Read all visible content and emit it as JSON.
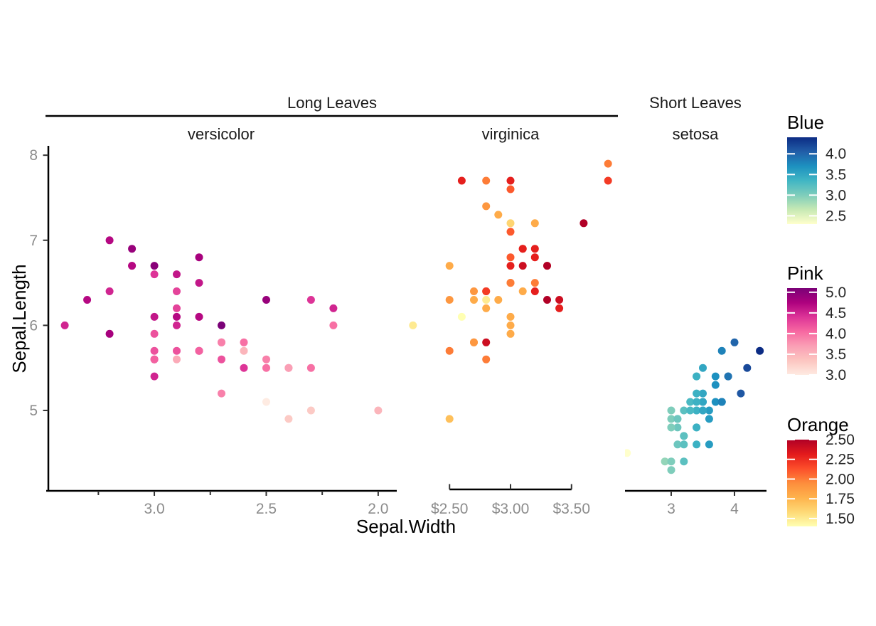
{
  "chart_data": {
    "type": "scatter",
    "xlabel": "Sepal.Width",
    "ylabel": "Sepal.Length",
    "facet_groups": [
      {
        "label": "Long Leaves",
        "underline": true
      },
      {
        "label": "Short Leaves",
        "underline": false
      }
    ],
    "y_axis": {
      "domain": [
        4.055,
        8.11
      ],
      "ticks": [
        {
          "v": 8,
          "label": "8"
        },
        {
          "v": 7,
          "label": "7"
        },
        {
          "v": 6,
          "label": "6"
        },
        {
          "v": 5,
          "label": "5"
        }
      ]
    },
    "panels": [
      {
        "strip": "versicolor",
        "group": "Long Leaves",
        "x_domain": [
          3.483,
          1.917
        ],
        "axis": {
          "style": "full",
          "tick_dir": "down",
          "ticks": [
            {
              "v": 3.0,
              "label": "3.0"
            },
            {
              "v": 2.5,
              "label": "2.5"
            },
            {
              "v": 2.0,
              "label": "2.0"
            }
          ],
          "minor": [
            3.25,
            2.75,
            2.25
          ]
        },
        "color": {
          "ramp": "rdpu",
          "domain": [
            3.0,
            5.1
          ],
          "variable": "Petal.Length"
        },
        "point_fields": [
          "sepal_width_x",
          "sepal_length_y",
          "color_value"
        ],
        "points": [
          [
            3.2,
            7.0,
            4.7
          ],
          [
            3.2,
            6.4,
            4.5
          ],
          [
            3.1,
            6.9,
            4.9
          ],
          [
            2.3,
            5.5,
            4.0
          ],
          [
            2.8,
            6.5,
            4.6
          ],
          [
            2.8,
            5.7,
            4.5
          ],
          [
            3.3,
            6.3,
            4.7
          ],
          [
            2.4,
            4.9,
            3.3
          ],
          [
            2.9,
            6.6,
            4.6
          ],
          [
            2.7,
            5.2,
            3.9
          ],
          [
            2.0,
            5.0,
            3.5
          ],
          [
            3.0,
            5.9,
            4.2
          ],
          [
            2.2,
            6.0,
            4.0
          ],
          [
            2.9,
            6.1,
            4.7
          ],
          [
            2.9,
            5.6,
            3.6
          ],
          [
            3.1,
            6.7,
            4.4
          ],
          [
            3.0,
            5.6,
            4.5
          ],
          [
            2.7,
            5.8,
            4.1
          ],
          [
            2.2,
            6.2,
            4.5
          ],
          [
            2.5,
            5.6,
            3.9
          ],
          [
            3.2,
            5.9,
            4.8
          ],
          [
            2.8,
            6.1,
            4.0
          ],
          [
            2.5,
            6.3,
            4.9
          ],
          [
            2.8,
            6.1,
            4.7
          ],
          [
            2.9,
            6.4,
            4.3
          ],
          [
            3.0,
            6.6,
            4.4
          ],
          [
            2.8,
            6.8,
            4.8
          ],
          [
            3.0,
            6.7,
            5.0
          ],
          [
            2.9,
            6.0,
            4.5
          ],
          [
            2.6,
            5.7,
            3.5
          ],
          [
            2.4,
            5.5,
            3.8
          ],
          [
            2.4,
            5.5,
            3.7
          ],
          [
            2.7,
            5.8,
            3.9
          ],
          [
            2.7,
            6.0,
            5.1
          ],
          [
            3.0,
            5.4,
            4.5
          ],
          [
            3.4,
            6.0,
            4.5
          ],
          [
            3.1,
            6.7,
            4.7
          ],
          [
            2.3,
            6.3,
            4.4
          ],
          [
            3.0,
            5.6,
            4.1
          ],
          [
            2.5,
            5.5,
            4.0
          ],
          [
            2.6,
            5.5,
            4.4
          ],
          [
            3.0,
            6.1,
            4.6
          ],
          [
            2.6,
            5.8,
            4.0
          ],
          [
            2.3,
            5.0,
            3.3
          ],
          [
            2.7,
            5.6,
            4.2
          ],
          [
            3.0,
            5.7,
            4.2
          ],
          [
            2.9,
            5.7,
            4.2
          ],
          [
            2.9,
            6.2,
            4.3
          ],
          [
            2.5,
            5.1,
            3.0
          ],
          [
            2.8,
            5.7,
            4.1
          ]
        ]
      },
      {
        "strip": "virginica",
        "group": "Long Leaves",
        "x_domain": [
          2.114,
          3.886
        ],
        "axis": {
          "style": "capped",
          "tick_dir": "up",
          "ticks": [
            {
              "v": 2.5,
              "label": "$2.50"
            },
            {
              "v": 3.0,
              "label": "$3.00"
            },
            {
              "v": 3.5,
              "label": "$3.50"
            }
          ],
          "minor": []
        },
        "color": {
          "ramp": "ylorrd",
          "domain": [
            1.4,
            2.5
          ],
          "variable": "Petal.Width"
        },
        "point_fields": [
          "sepal_width_x",
          "sepal_length_y",
          "color_value"
        ],
        "points": [
          [
            3.3,
            6.3,
            2.5
          ],
          [
            2.7,
            5.8,
            1.9
          ],
          [
            3.0,
            7.1,
            2.1
          ],
          [
            2.9,
            6.3,
            1.8
          ],
          [
            3.0,
            6.5,
            2.2
          ],
          [
            3.0,
            7.6,
            2.1
          ],
          [
            2.5,
            4.9,
            1.7
          ],
          [
            2.9,
            7.3,
            1.8
          ],
          [
            2.5,
            6.7,
            1.8
          ],
          [
            3.6,
            7.2,
            2.5
          ],
          [
            3.2,
            6.5,
            2.0
          ],
          [
            2.7,
            6.4,
            1.9
          ],
          [
            3.0,
            6.8,
            2.1
          ],
          [
            2.5,
            5.7,
            2.0
          ],
          [
            2.8,
            5.8,
            2.4
          ],
          [
            3.2,
            6.4,
            2.3
          ],
          [
            3.0,
            6.5,
            1.8
          ],
          [
            3.8,
            7.7,
            2.2
          ],
          [
            2.6,
            7.7,
            2.3
          ],
          [
            2.2,
            6.0,
            1.5
          ],
          [
            3.2,
            6.9,
            2.3
          ],
          [
            2.8,
            5.6,
            2.0
          ],
          [
            2.8,
            7.7,
            2.0
          ],
          [
            2.7,
            6.3,
            1.8
          ],
          [
            3.3,
            6.7,
            2.1
          ],
          [
            3.2,
            7.2,
            1.8
          ],
          [
            2.8,
            6.2,
            1.8
          ],
          [
            3.0,
            6.1,
            1.8
          ],
          [
            2.8,
            6.4,
            2.1
          ],
          [
            3.0,
            7.2,
            1.6
          ],
          [
            2.8,
            7.4,
            1.9
          ],
          [
            3.8,
            7.9,
            2.0
          ],
          [
            2.8,
            6.4,
            2.2
          ],
          [
            2.8,
            6.3,
            1.5
          ],
          [
            2.6,
            6.1,
            1.4
          ],
          [
            3.0,
            7.7,
            2.3
          ],
          [
            3.4,
            6.3,
            2.4
          ],
          [
            3.1,
            6.4,
            1.8
          ],
          [
            3.0,
            6.0,
            1.8
          ],
          [
            3.1,
            6.9,
            2.1
          ],
          [
            3.1,
            6.7,
            2.4
          ],
          [
            3.1,
            6.9,
            2.3
          ],
          [
            2.7,
            5.8,
            1.9
          ],
          [
            3.2,
            6.8,
            2.3
          ],
          [
            3.3,
            6.7,
            2.5
          ],
          [
            3.0,
            6.7,
            2.3
          ],
          [
            2.5,
            6.3,
            1.9
          ],
          [
            3.0,
            6.5,
            2.0
          ],
          [
            3.4,
            6.2,
            2.3
          ],
          [
            3.0,
            5.9,
            1.8
          ]
        ]
      },
      {
        "strip": "setosa",
        "group": "Short Leaves",
        "x_domain": [
          2.27,
          4.506
        ],
        "axis": {
          "style": "full",
          "tick_dir": "down",
          "ticks": [
            {
              "v": 3,
              "label": "3"
            },
            {
              "v": 4,
              "label": "4"
            }
          ],
          "minor": []
        },
        "color": {
          "ramp": "ylgnbu",
          "domain": [
            2.3,
            4.4
          ],
          "variable": "Sepal.Width"
        },
        "point_fields": [
          "sepal_width_x",
          "sepal_length_y",
          "color_value"
        ],
        "points": [
          [
            3.5,
            5.1,
            3.5
          ],
          [
            3.0,
            4.9,
            3.0
          ],
          [
            3.2,
            4.7,
            3.2
          ],
          [
            3.1,
            4.6,
            3.1
          ],
          [
            3.6,
            5.0,
            3.6
          ],
          [
            3.9,
            5.4,
            3.9
          ],
          [
            3.4,
            4.6,
            3.4
          ],
          [
            3.4,
            5.0,
            3.4
          ],
          [
            2.9,
            4.4,
            2.9
          ],
          [
            3.1,
            4.9,
            3.1
          ],
          [
            3.7,
            5.4,
            3.7
          ],
          [
            3.4,
            4.8,
            3.4
          ],
          [
            3.0,
            4.8,
            3.0
          ],
          [
            3.0,
            4.3,
            3.0
          ],
          [
            4.0,
            5.8,
            4.0
          ],
          [
            4.4,
            5.7,
            4.4
          ],
          [
            3.9,
            5.4,
            3.9
          ],
          [
            3.5,
            5.1,
            3.5
          ],
          [
            3.8,
            5.7,
            3.8
          ],
          [
            3.8,
            5.1,
            3.8
          ],
          [
            3.4,
            5.4,
            3.4
          ],
          [
            3.7,
            5.1,
            3.7
          ],
          [
            3.6,
            4.6,
            3.6
          ],
          [
            3.3,
            5.1,
            3.3
          ],
          [
            3.4,
            4.8,
            3.4
          ],
          [
            3.0,
            5.0,
            3.0
          ],
          [
            3.4,
            5.0,
            3.4
          ],
          [
            3.5,
            5.2,
            3.5
          ],
          [
            3.4,
            5.2,
            3.4
          ],
          [
            3.2,
            4.7,
            3.2
          ],
          [
            3.1,
            4.8,
            3.1
          ],
          [
            3.4,
            5.4,
            3.4
          ],
          [
            4.1,
            5.2,
            4.1
          ],
          [
            4.2,
            5.5,
            4.2
          ],
          [
            3.1,
            4.9,
            3.1
          ],
          [
            3.2,
            5.0,
            3.2
          ],
          [
            3.5,
            5.5,
            3.5
          ],
          [
            3.6,
            4.9,
            3.6
          ],
          [
            3.0,
            4.4,
            3.0
          ],
          [
            3.4,
            5.1,
            3.4
          ],
          [
            3.5,
            5.0,
            3.5
          ],
          [
            2.3,
            4.5,
            2.3
          ],
          [
            3.2,
            4.4,
            3.2
          ],
          [
            3.5,
            5.0,
            3.5
          ],
          [
            3.8,
            5.1,
            3.8
          ],
          [
            3.0,
            4.8,
            3.0
          ],
          [
            3.8,
            5.1,
            3.8
          ],
          [
            3.2,
            4.6,
            3.2
          ],
          [
            3.7,
            5.3,
            3.7
          ],
          [
            3.3,
            5.0,
            3.3
          ]
        ]
      }
    ],
    "legends": [
      {
        "title": "Blue",
        "ramp": "ylgnbu",
        "domain": [
          2.3,
          4.4
        ],
        "ticks": [
          {
            "v": 4.0,
            "label": "4.0"
          },
          {
            "v": 3.5,
            "label": "3.5"
          },
          {
            "v": 3.0,
            "label": "3.0"
          },
          {
            "v": 2.5,
            "label": "2.5"
          }
        ]
      },
      {
        "title": "Pink",
        "ramp": "rdpu",
        "domain": [
          3.0,
          5.1
        ],
        "ticks": [
          {
            "v": 5.0,
            "label": "5.0"
          },
          {
            "v": 4.5,
            "label": "4.5"
          },
          {
            "v": 4.0,
            "label": "4.0"
          },
          {
            "v": 3.5,
            "label": "3.5"
          },
          {
            "v": 3.0,
            "label": "3.0"
          }
        ]
      },
      {
        "title": "Orange",
        "ramp": "ylorrd",
        "domain": [
          1.4,
          2.5
        ],
        "ticks": [
          {
            "v": 2.5,
            "label": "2.50"
          },
          {
            "v": 2.25,
            "label": "2.25"
          },
          {
            "v": 2.0,
            "label": "2.00"
          },
          {
            "v": 1.75,
            "label": "1.75"
          },
          {
            "v": 1.5,
            "label": "1.50"
          }
        ]
      }
    ],
    "ramps": {
      "ylgnbu": [
        "#ffffcc",
        "#c7e9b4",
        "#7fcdbb",
        "#41b6c4",
        "#1d91c0",
        "#225ea8",
        "#0c2c84"
      ],
      "rdpu": [
        "#feebe2",
        "#fcc5c0",
        "#fa9fb5",
        "#f768a1",
        "#dd3497",
        "#ae017e",
        "#7a0177"
      ],
      "ylorrd": [
        "#ffffb2",
        "#fed976",
        "#feb24c",
        "#fd8d3c",
        "#fc4e2a",
        "#e31a1c",
        "#b10026"
      ]
    },
    "colors": {
      "background": "#ffffff",
      "axis_line": "#000000",
      "tick_mark": "#333333",
      "tick_label": "#8c8c8c",
      "strip_text": "#1a1a1a",
      "axis_title": "#000000",
      "legend_label": "#262626",
      "legend_tick": "#ffffff"
    }
  }
}
